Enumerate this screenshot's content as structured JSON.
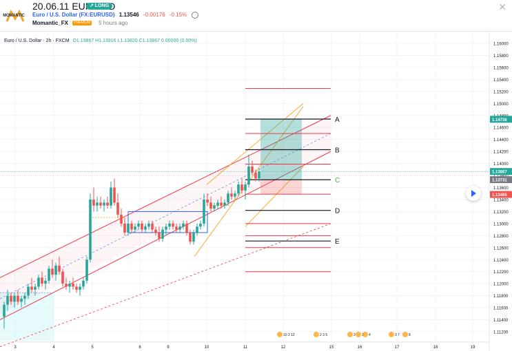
{
  "header": {
    "logo_text": "MOMANTIC",
    "title": "20.06.11 EUR/USD",
    "badge": "↗ LONG",
    "symbol": "Euro / U.S. Dollar (FX:EURUSD)",
    "price": "1.13546",
    "change": "-0.00176",
    "change_pct": "-0.15%",
    "author": "Momantic_FX",
    "author_badge": "PREMIUM",
    "time": "5 hours ago"
  },
  "legend": {
    "name": "Euro / U.S. Dollar · 2h · FXCM",
    "ohlc": "O1.13867  H1.13916  L1.13820  C1.13867  0.00000 (0.00%)"
  },
  "price_axis": [
    "1.16000",
    "1.15800",
    "1.15600",
    "1.15400",
    "1.15200",
    "1.15000",
    "1.14800",
    "1.14600",
    "1.14400",
    "1.14200",
    "1.14000",
    "1.13800",
    "1.13600",
    "1.13400",
    "1.13200",
    "1.13000",
    "1.12800",
    "1.12600",
    "1.12400",
    "1.12200",
    "1.12000",
    "1.11800",
    "1.11600",
    "1.11400",
    "1.11200"
  ],
  "price_labels": {
    "target": "1.14736",
    "current": "1.13867",
    "entry": "1.13731",
    "stop": "1.13485"
  },
  "time_axis": [
    "3",
    "4",
    "5",
    "8",
    "9",
    "10",
    "11",
    "12",
    "15",
    "16",
    "17",
    "18",
    "19"
  ],
  "level_labels": [
    "A",
    "B",
    "C",
    "D",
    "E"
  ],
  "event_labels": [
    "10 2 12",
    "2 3 5",
    "2",
    "3",
    "4",
    "3 7",
    "8"
  ],
  "colors": {
    "up": "#26a69a",
    "down": "#ef5350",
    "channel": "#f23645",
    "fib": "#ff9800",
    "target": "#26a69a",
    "stop": "#ef5350"
  }
}
